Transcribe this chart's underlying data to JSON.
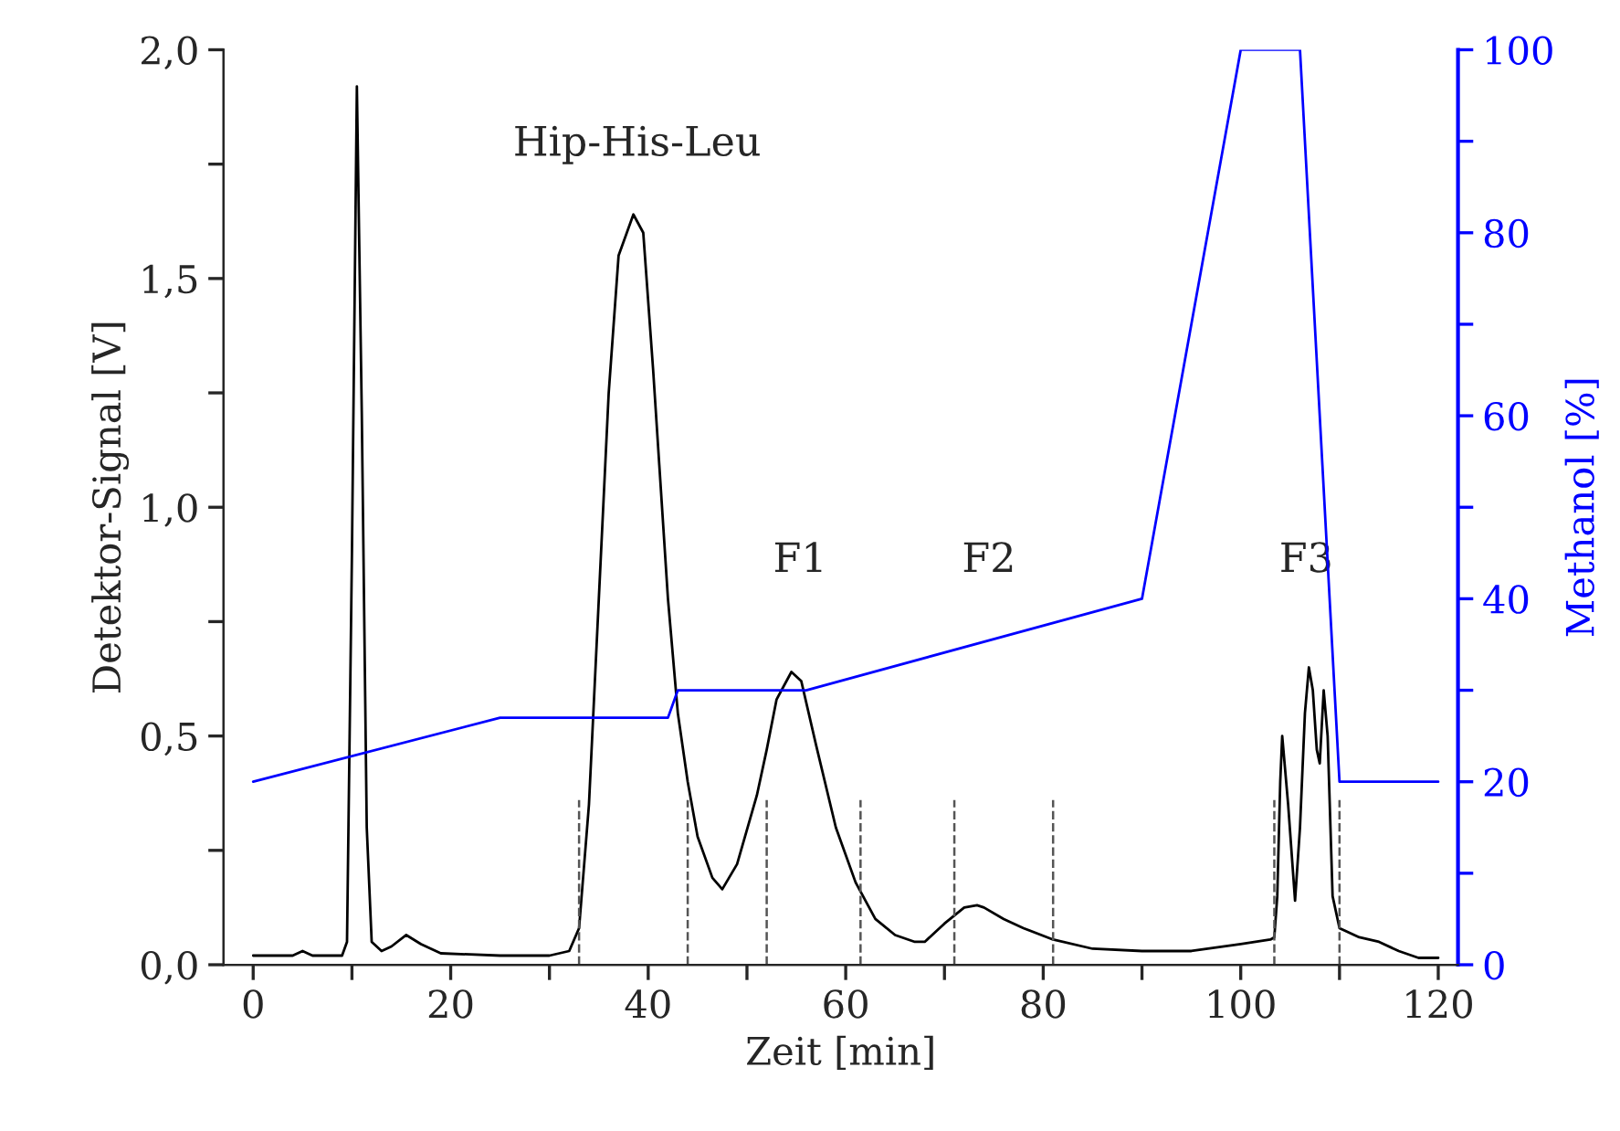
{
  "chart_data": {
    "type": "line",
    "xlabel": "Zeit [min]",
    "ylabel": "Detektor-Signal [V]",
    "y2label": "Methanol [%]",
    "xlim": [
      -3,
      122
    ],
    "xticks": [
      0,
      {
        "value": 10,
        "label": null
      },
      20,
      {
        "value": 30,
        "label": null
      },
      40,
      {
        "value": 50,
        "label": null
      },
      60,
      {
        "value": 70,
        "label": null
      },
      80,
      {
        "value": 90,
        "label": null
      },
      100,
      {
        "value": 110,
        "label": null
      },
      120
    ],
    "ylim": [
      0,
      2.0
    ],
    "yticks": [
      {
        "value": 0,
        "label": "0,0"
      },
      {
        "value": 0.25,
        "label": null
      },
      {
        "value": 0.5,
        "label": "0,5"
      },
      {
        "value": 0.75,
        "label": null
      },
      {
        "value": 1.0,
        "label": "1,0"
      },
      {
        "value": 1.25,
        "label": null
      },
      {
        "value": 1.5,
        "label": "1,5"
      },
      {
        "value": 1.75,
        "label": null
      },
      {
        "value": 2.0,
        "label": "2,0"
      }
    ],
    "y2lim": [
      0,
      100
    ],
    "y2ticks": [
      0,
      {
        "value": 10,
        "label": null
      },
      20,
      {
        "value": 30,
        "label": null
      },
      40,
      {
        "value": 50,
        "label": null
      },
      60,
      {
        "value": 70,
        "label": null
      },
      80,
      {
        "value": 90,
        "label": null
      },
      100
    ],
    "grid": false,
    "legend": false,
    "marker": "none",
    "series": [
      {
        "color": "#000000",
        "x": [
          0,
          4,
          5,
          6,
          9,
          9.5,
          10,
          10.5,
          11,
          11.5,
          12,
          13,
          14,
          15.5,
          17,
          19,
          25,
          30,
          32,
          33,
          34,
          35,
          36,
          37,
          38.5,
          39.5,
          40.5,
          42,
          43,
          44,
          45,
          46.5,
          47.5,
          49,
          51,
          52,
          53,
          54.5,
          55.5,
          57,
          59,
          61,
          63,
          65,
          67,
          68,
          70,
          72,
          73.3,
          74,
          76,
          78,
          81,
          85,
          90,
          95,
          100,
          103,
          103.4,
          103.7,
          104,
          104.2,
          104.8,
          105.5,
          106,
          106.5,
          106.9,
          107.3,
          107.7,
          108,
          108.4,
          108.8,
          109.3,
          110,
          112,
          114,
          116,
          118,
          120
        ],
        "values": [
          0.02,
          0.02,
          0.03,
          0.02,
          0.02,
          0.05,
          0.9,
          1.92,
          1.2,
          0.3,
          0.05,
          0.03,
          0.04,
          0.065,
          0.045,
          0.025,
          0.02,
          0.02,
          0.03,
          0.08,
          0.35,
          0.8,
          1.25,
          1.55,
          1.64,
          1.6,
          1.3,
          0.8,
          0.55,
          0.4,
          0.28,
          0.19,
          0.165,
          0.22,
          0.37,
          0.47,
          0.58,
          0.64,
          0.62,
          0.48,
          0.3,
          0.18,
          0.1,
          0.065,
          0.05,
          0.05,
          0.09,
          0.125,
          0.13,
          0.125,
          0.1,
          0.08,
          0.055,
          0.035,
          0.03,
          0.03,
          0.045,
          0.055,
          0.06,
          0.15,
          0.4,
          0.5,
          0.35,
          0.14,
          0.3,
          0.55,
          0.65,
          0.6,
          0.47,
          0.44,
          0.6,
          0.5,
          0.15,
          0.08,
          0.06,
          0.05,
          0.03,
          0.015,
          0.015
        ]
      },
      {
        "color": "#0000ff",
        "axis": "y2",
        "x": [
          0,
          25,
          42,
          43,
          56,
          90,
          100,
          106,
          110,
          120
        ],
        "values": [
          20,
          27,
          27,
          30,
          30,
          40,
          100,
          100,
          20,
          20
        ]
      }
    ],
    "ref_lines": [
      {
        "axis": "x",
        "value": 33,
        "color": "#555555",
        "line_style": "dashed"
      },
      {
        "axis": "x",
        "value": 44,
        "color": "#555555",
        "line_style": "dashed"
      },
      {
        "axis": "x",
        "value": 52,
        "color": "#555555",
        "line_style": "dashed"
      },
      {
        "axis": "x",
        "value": 61.5,
        "color": "#555555",
        "line_style": "dashed"
      },
      {
        "axis": "x",
        "value": 71,
        "color": "#555555",
        "line_style": "dashed"
      },
      {
        "axis": "x",
        "value": 81,
        "color": "#555555",
        "line_style": "dashed"
      },
      {
        "axis": "x",
        "value": 103.4,
        "color": "#555555",
        "line_style": "dashed"
      },
      {
        "axis": "x",
        "value": 110,
        "color": "#555555",
        "line_style": "dashed"
      }
    ],
    "annotations": [
      "Hip-His-Leu",
      "F1",
      "F2",
      "F3"
    ]
  }
}
